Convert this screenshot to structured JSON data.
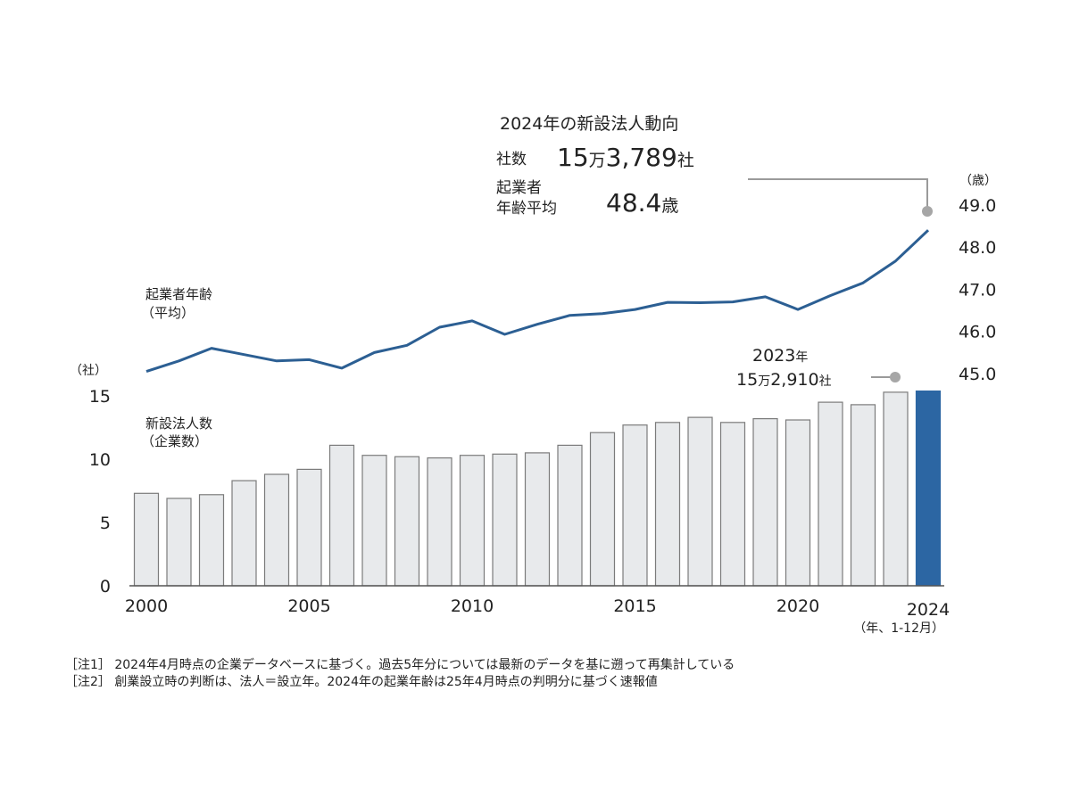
{
  "chart_data": {
    "type": "bar+line",
    "x": [
      2000,
      2001,
      2002,
      2003,
      2004,
      2005,
      2006,
      2007,
      2008,
      2009,
      2010,
      2011,
      2012,
      2013,
      2014,
      2015,
      2016,
      2017,
      2018,
      2019,
      2020,
      2021,
      2022,
      2023,
      2024
    ],
    "x_tick_labels": [
      "2000",
      "2005",
      "2010",
      "2015",
      "2020",
      "2024"
    ],
    "x_unit": "（年、1-12月）",
    "series": [
      {
        "name_lines": [
          "新設法人数",
          "（企業数）"
        ],
        "type": "bar",
        "axis": "left",
        "unit": "（社）",
        "unit_scale": "万社",
        "values": [
          7.3,
          6.9,
          7.2,
          8.3,
          8.8,
          9.2,
          11.1,
          10.3,
          10.2,
          10.1,
          10.3,
          10.4,
          10.5,
          11.1,
          12.1,
          12.7,
          12.9,
          13.3,
          12.9,
          13.2,
          13.1,
          14.5,
          14.3,
          15.29,
          15.38
        ],
        "color": "#e8eaec",
        "stroke": "#7b7b7b",
        "highlight_color": "#2c66a3"
      },
      {
        "name_lines": [
          "起業者年齢",
          "（平均）"
        ],
        "type": "line",
        "axis": "right",
        "unit": "（歳）",
        "values": [
          45.05,
          45.3,
          45.6,
          45.45,
          45.3,
          45.33,
          45.13,
          45.5,
          45.67,
          46.1,
          46.25,
          45.93,
          46.17,
          46.38,
          46.42,
          46.52,
          46.69,
          46.68,
          46.7,
          46.82,
          46.52,
          46.85,
          47.15,
          47.67,
          48.4
        ],
        "color": "#2c5f93"
      }
    ],
    "y_left": {
      "ticks": [
        "0",
        "5",
        "10",
        "15"
      ],
      "range": [
        0,
        15.5
      ]
    },
    "y_right": {
      "ticks": [
        "45.0",
        "46.0",
        "47.0",
        "48.0",
        "49.0"
      ],
      "range": [
        45.0,
        49.0
      ]
    },
    "grid": false,
    "callout_2024": {
      "title": "2024年の新設法人動向",
      "companies_label": "社数",
      "companies_value_a": "15",
      "companies_value_b": "万",
      "companies_value_c": "3,789",
      "companies_value_d": "社",
      "age_label_lines": [
        "起業者",
        "年齢平均"
      ],
      "age_value": "48.4",
      "age_unit": "歳"
    },
    "callout_2023": {
      "year": "2023",
      "year_unit": "年",
      "value_a": "15",
      "value_b": "万",
      "value_c": "2,910",
      "value_d": "社"
    }
  },
  "notes": [
    "［注1］ 2024年4月時点の企業データベースに基づく。過去5年分については最新のデータを基に遡って再集計している",
    "［注2］ 創業設立時の判断は、法人＝設立年。2024年の起業年齢は25年4月時点の判明分に基づく速報値"
  ],
  "colors": {
    "axis": "#555555",
    "leader": "#9a9a9a",
    "dot": "#a6a6a6"
  }
}
